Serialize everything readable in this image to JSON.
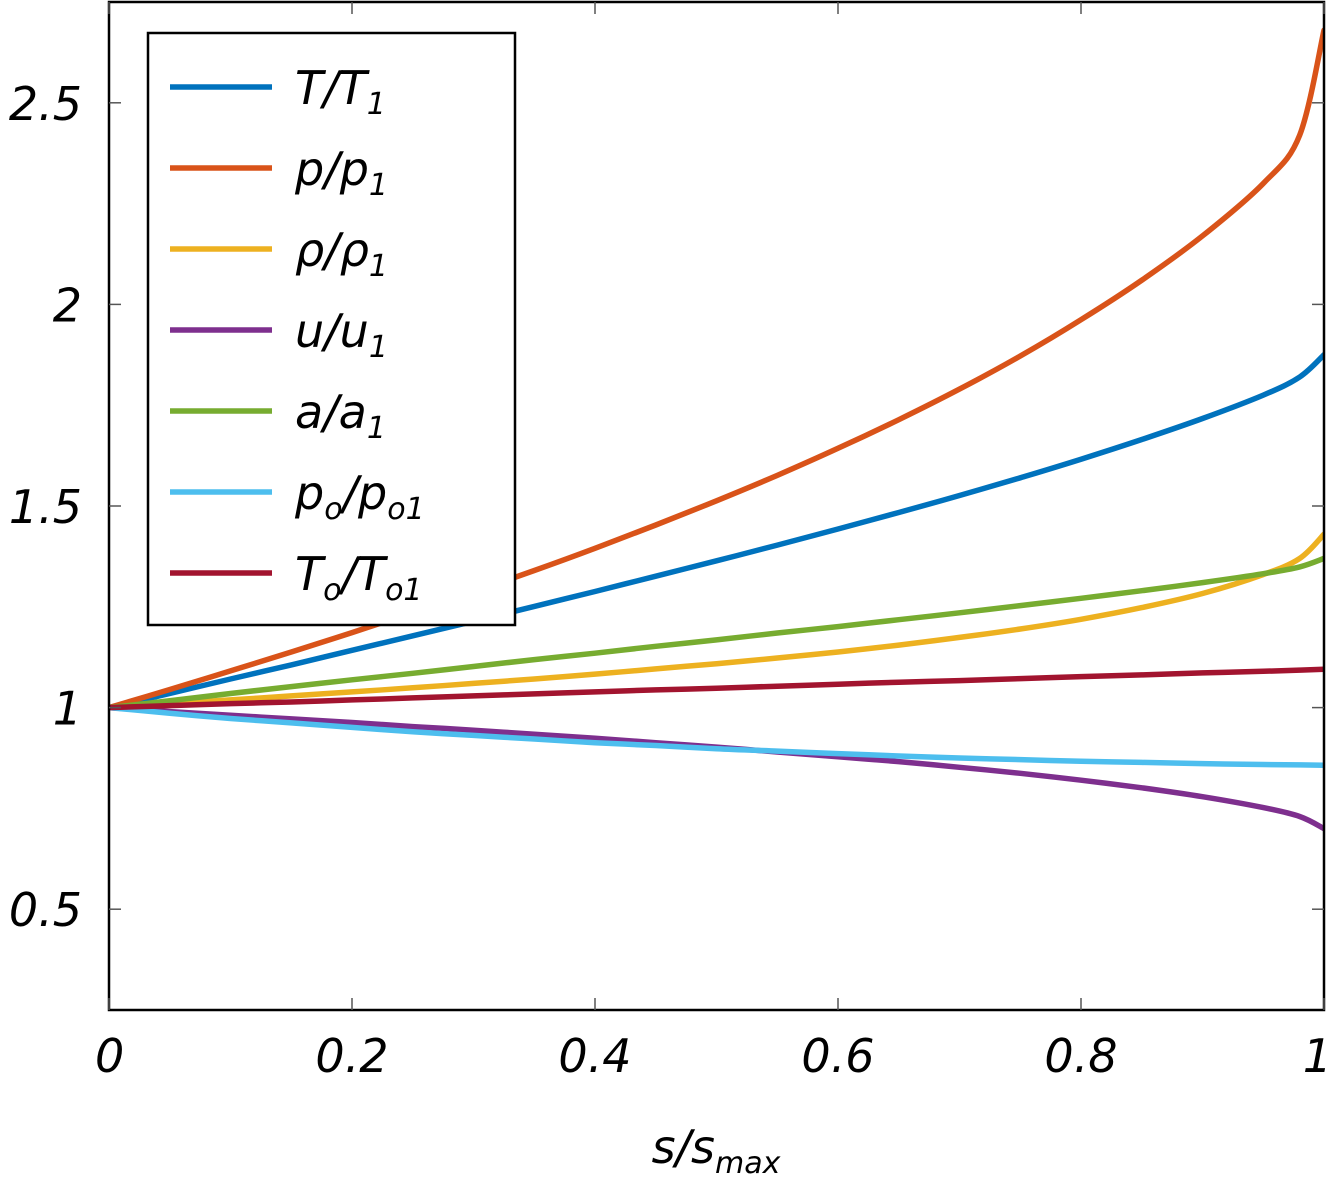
{
  "chart_data": {
    "type": "line",
    "title": "",
    "xlabel": {
      "main": "s/s",
      "sub": "max"
    },
    "ylabel": "",
    "xlim": [
      0,
      1
    ],
    "ylim": [
      0.25,
      2.75
    ],
    "x_ticks": [
      0,
      0.2,
      0.4,
      0.6,
      0.8,
      1
    ],
    "x_tick_labels": [
      "0",
      "0.2",
      "0.4",
      "0.6",
      "0.8",
      "1"
    ],
    "y_ticks": [
      0.5,
      1,
      1.5,
      2,
      2.5
    ],
    "y_tick_labels": [
      "0.5",
      "1",
      "1.5",
      "2",
      "2.5"
    ],
    "grid": false,
    "legend_position": "top-left",
    "x": [
      0,
      0.05,
      0.1,
      0.15,
      0.2,
      0.25,
      0.3,
      0.35,
      0.4,
      0.45,
      0.5,
      0.55,
      0.6,
      0.65,
      0.7,
      0.75,
      0.8,
      0.85,
      0.9,
      0.95,
      0.98,
      1.0
    ],
    "series": [
      {
        "name": "T/T1",
        "label_main": "T/T",
        "label_sub": "1",
        "color": "#0072BD",
        "values": [
          1.0,
          1.035,
          1.071,
          1.106,
          1.142,
          1.178,
          1.214,
          1.251,
          1.288,
          1.326,
          1.364,
          1.403,
          1.443,
          1.484,
          1.526,
          1.57,
          1.616,
          1.665,
          1.717,
          1.775,
          1.82,
          1.875
        ]
      },
      {
        "name": "p/p1",
        "label_main": "p/p",
        "label_sub": "1",
        "color": "#D95319",
        "values": [
          1.0,
          1.045,
          1.091,
          1.138,
          1.186,
          1.236,
          1.287,
          1.34,
          1.395,
          1.453,
          1.513,
          1.576,
          1.643,
          1.714,
          1.79,
          1.872,
          1.962,
          2.06,
          2.17,
          2.3,
          2.42,
          2.68
        ]
      },
      {
        "name": "ρ/ρ1",
        "label_main": "ρ/ρ",
        "label_sub": "1",
        "color": "#EDB120",
        "values": [
          1.0,
          1.01,
          1.019,
          1.029,
          1.039,
          1.049,
          1.06,
          1.071,
          1.083,
          1.096,
          1.109,
          1.123,
          1.138,
          1.155,
          1.174,
          1.195,
          1.219,
          1.248,
          1.283,
          1.33,
          1.37,
          1.43
        ]
      },
      {
        "name": "u/u1",
        "label_main": "u/u",
        "label_sub": "1",
        "color": "#7E2F8E",
        "values": [
          1.0,
          0.99,
          0.981,
          0.972,
          0.963,
          0.953,
          0.944,
          0.934,
          0.924,
          0.913,
          0.902,
          0.89,
          0.878,
          0.866,
          0.852,
          0.837,
          0.82,
          0.801,
          0.779,
          0.752,
          0.73,
          0.7
        ]
      },
      {
        "name": "a/a1",
        "label_main": "a/a",
        "label_sub": "1",
        "color": "#77AC30",
        "values": [
          1.0,
          1.017,
          1.035,
          1.052,
          1.069,
          1.085,
          1.102,
          1.119,
          1.135,
          1.152,
          1.168,
          1.185,
          1.201,
          1.218,
          1.235,
          1.253,
          1.271,
          1.29,
          1.31,
          1.332,
          1.349,
          1.37
        ]
      },
      {
        "name": "po/po1",
        "label_main": "p",
        "label_sub1": "o",
        "label_mid": "/p",
        "label_sub2": "o1",
        "color": "#4DBEEE",
        "values": [
          1.0,
          0.986,
          0.973,
          0.962,
          0.951,
          0.94,
          0.931,
          0.922,
          0.913,
          0.906,
          0.898,
          0.892,
          0.886,
          0.88,
          0.875,
          0.871,
          0.867,
          0.864,
          0.861,
          0.859,
          0.858,
          0.857
        ]
      },
      {
        "name": "To/To1",
        "label_main": "T",
        "label_sub1": "o",
        "label_mid": "/T",
        "label_sub2": "o1",
        "color": "#A2142F",
        "values": [
          1.0,
          1.005,
          1.01,
          1.014,
          1.019,
          1.024,
          1.029,
          1.034,
          1.039,
          1.044,
          1.048,
          1.053,
          1.058,
          1.063,
          1.067,
          1.072,
          1.077,
          1.081,
          1.086,
          1.09,
          1.093,
          1.095
        ]
      }
    ]
  }
}
